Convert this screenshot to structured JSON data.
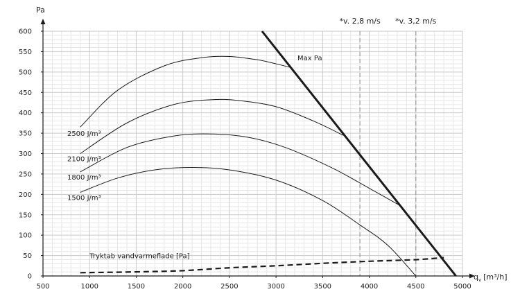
{
  "chart_data": {
    "type": "line",
    "xlabel": "q",
    "xlabel_sub": "v",
    "xlabel_unit": "[m³/h]",
    "ylabel": "Pa",
    "xlim": [
      500,
      5000
    ],
    "ylim": [
      0,
      600
    ],
    "x_ticks": [
      500,
      1000,
      1500,
      2000,
      2500,
      3000,
      3500,
      4000,
      4500,
      5000
    ],
    "y_ticks": [
      0,
      50,
      100,
      150,
      200,
      250,
      300,
      350,
      400,
      450,
      500,
      550,
      600
    ],
    "series": [
      {
        "name": "2500 J/m³",
        "style": "thin",
        "points": [
          [
            900,
            365
          ],
          [
            1300,
            455
          ],
          [
            1800,
            515
          ],
          [
            2200,
            535
          ],
          [
            2500,
            538
          ],
          [
            2800,
            530
          ],
          [
            3000,
            520
          ],
          [
            3175,
            510
          ]
        ]
      },
      {
        "name": "2100 J/m³",
        "style": "thin",
        "points": [
          [
            900,
            300
          ],
          [
            1400,
            375
          ],
          [
            1900,
            420
          ],
          [
            2300,
            432
          ],
          [
            2600,
            430
          ],
          [
            3000,
            415
          ],
          [
            3400,
            380
          ],
          [
            3720,
            345
          ]
        ]
      },
      {
        "name": "1800 J/m³",
        "style": "thin",
        "points": [
          [
            900,
            255
          ],
          [
            1400,
            315
          ],
          [
            1900,
            343
          ],
          [
            2300,
            348
          ],
          [
            2700,
            340
          ],
          [
            3100,
            315
          ],
          [
            3600,
            265
          ],
          [
            4000,
            215
          ],
          [
            4350,
            170
          ]
        ]
      },
      {
        "name": "1500 J/m³",
        "style": "thin",
        "points": [
          [
            900,
            205
          ],
          [
            1300,
            240
          ],
          [
            1700,
            260
          ],
          [
            2100,
            266
          ],
          [
            2500,
            260
          ],
          [
            3000,
            235
          ],
          [
            3500,
            185
          ],
          [
            3900,
            125
          ],
          [
            4200,
            75
          ],
          [
            4500,
            0
          ]
        ]
      },
      {
        "name": "Max Pa",
        "style": "bold",
        "points": [
          [
            2850,
            600
          ],
          [
            4930,
            0
          ]
        ]
      },
      {
        "name": "Tryktab vandvarmeflade [Pa]",
        "style": "dashed",
        "points": [
          [
            900,
            8
          ],
          [
            1500,
            10
          ],
          [
            2000,
            13
          ],
          [
            2500,
            20
          ],
          [
            3000,
            25
          ],
          [
            3500,
            31
          ],
          [
            4000,
            36
          ],
          [
            4500,
            40
          ],
          [
            4800,
            45
          ]
        ]
      }
    ],
    "vlines": [
      {
        "x": 3900,
        "label": "*v. 2,8 m/s"
      },
      {
        "x": 4500,
        "label": "*v. 3,2 m/s"
      }
    ],
    "curve_labels": [
      {
        "text": "2500 J/m³",
        "x": 760,
        "y": 350
      },
      {
        "text": "2100 J/m³",
        "x": 760,
        "y": 288
      },
      {
        "text": "1800 J/m³",
        "x": 760,
        "y": 243
      },
      {
        "text": "1500 J/m³",
        "x": 760,
        "y": 193
      },
      {
        "text": "Max Pa",
        "x": 3230,
        "y": 535
      },
      {
        "text": "Tryktab vandvarmeflade [Pa]",
        "x": 1000,
        "y": 50
      }
    ],
    "grid": true
  }
}
